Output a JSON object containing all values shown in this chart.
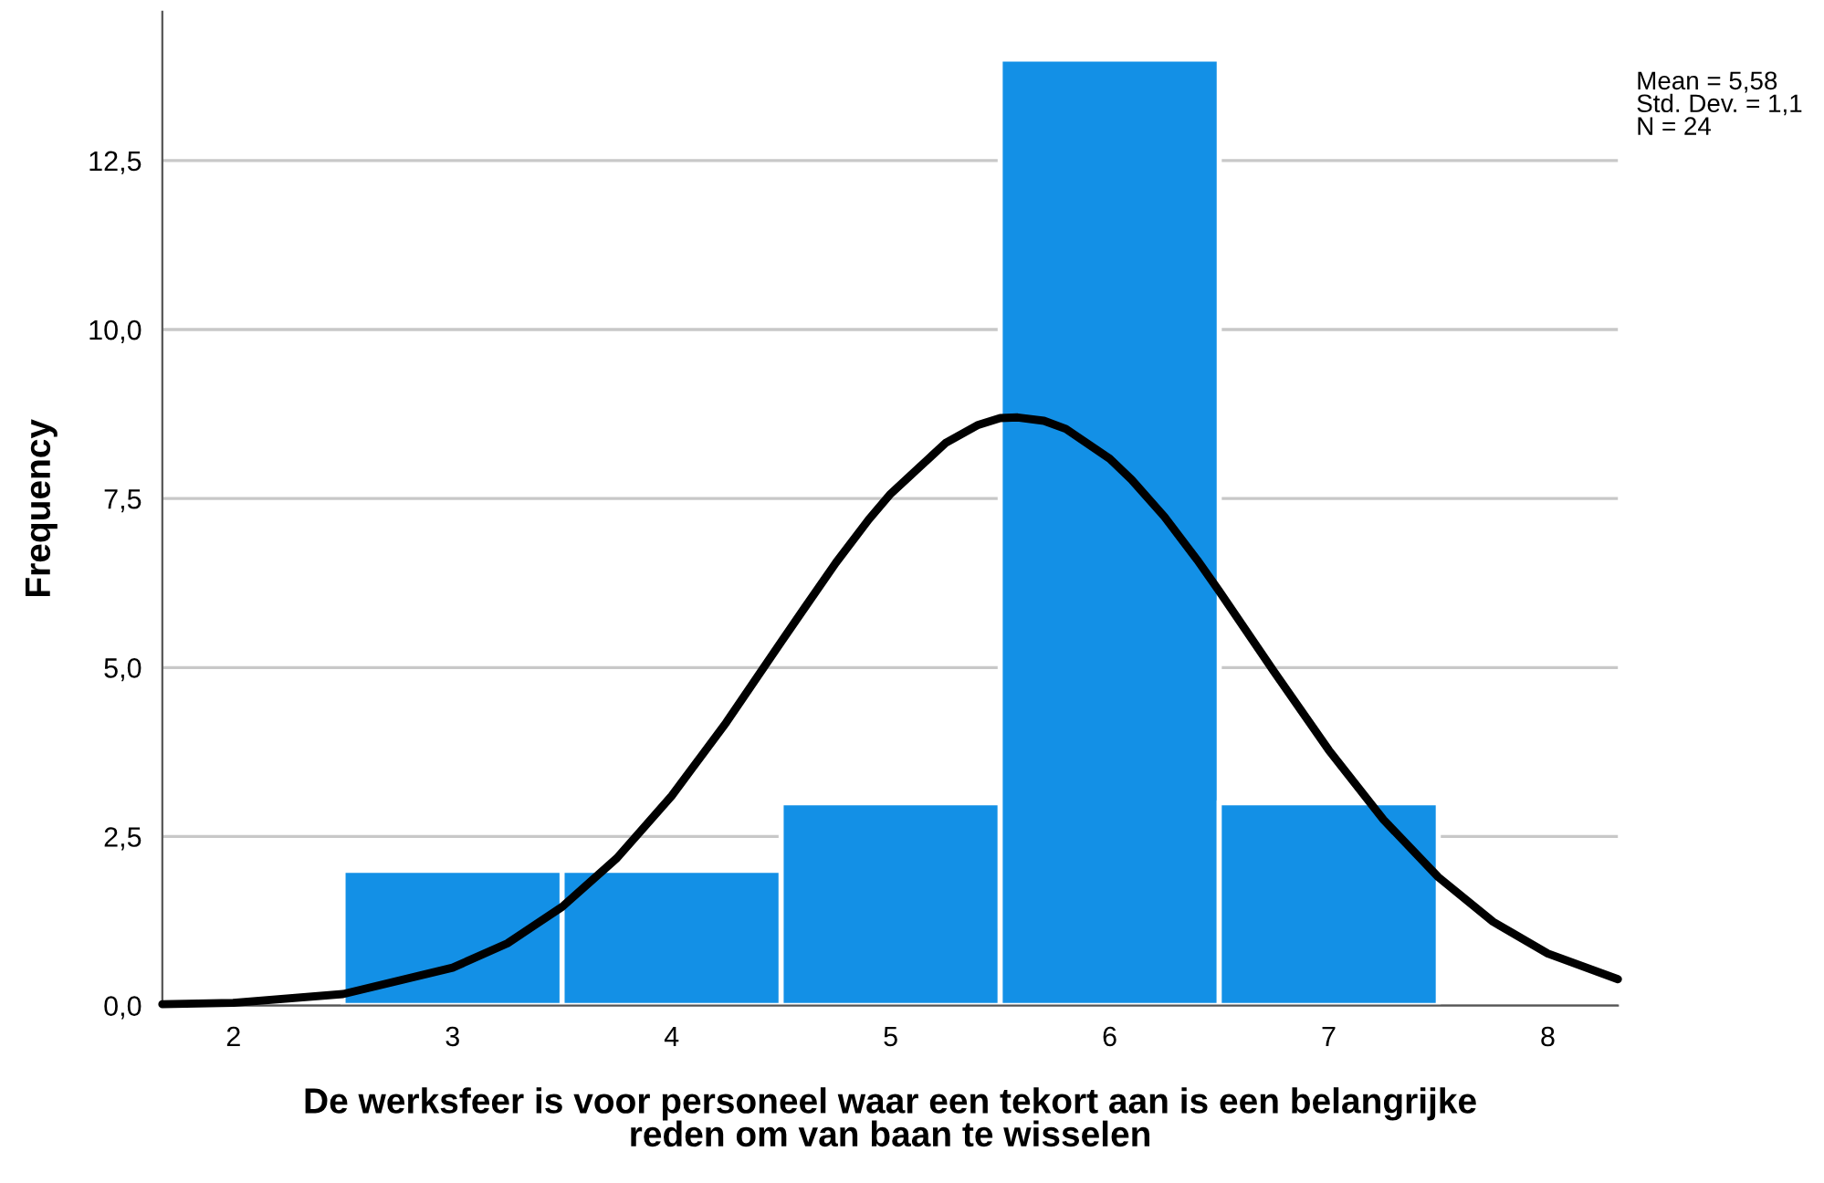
{
  "chart_data": {
    "type": "histogram",
    "xlabel": "De werksfeer is voor personeel waar een tekort aan is een belangrijke\nreden om van baan te wisselen",
    "ylabel": "Frequency",
    "bins": [
      2.5,
      3.5,
      4.5,
      5.5,
      6.5,
      7.5
    ],
    "values": [
      2,
      2,
      3,
      14,
      3
    ],
    "color": "#1390e6",
    "series": [
      {
        "type": "line",
        "color": "#000000",
        "x": [
          1.675,
          2.0,
          2.5,
          3.0,
          3.25,
          3.5,
          3.75,
          4.0,
          4.25,
          4.5,
          4.6,
          4.75,
          4.9,
          5.0,
          5.25,
          5.4,
          5.5,
          5.58,
          5.7,
          5.8,
          6.0,
          6.1,
          6.25,
          6.4,
          6.5,
          6.75,
          7.0,
          7.25,
          7.5,
          7.75,
          8.0,
          8.32
        ],
        "values": [
          0.02,
          0.04,
          0.17,
          0.56,
          0.92,
          1.46,
          2.18,
          3.1,
          4.19,
          5.38,
          5.85,
          6.55,
          7.19,
          7.57,
          8.32,
          8.59,
          8.69,
          8.7,
          8.65,
          8.53,
          8.09,
          7.78,
          7.23,
          6.59,
          6.13,
          4.94,
          3.78,
          2.75,
          1.9,
          1.24,
          0.77,
          0.39
        ]
      }
    ],
    "xlim": [
      1.675,
      8.32
    ],
    "ylim": [
      0,
      14.7
    ],
    "xticks": [
      2,
      3,
      4,
      5,
      6,
      7,
      8
    ],
    "yticks": [
      {
        "value": 0,
        "label": "0,0"
      },
      {
        "value": 2.5,
        "label": "2,5"
      },
      {
        "value": 5,
        "label": "5,0"
      },
      {
        "value": 7.5,
        "label": "7,5"
      },
      {
        "value": 10,
        "label": "10,0"
      },
      {
        "value": 12.5,
        "label": "12,5"
      }
    ],
    "grid": "y",
    "annotations": [
      "Mean = 5,58\nStd. Dev. = 1,1\nN = 24"
    ]
  }
}
